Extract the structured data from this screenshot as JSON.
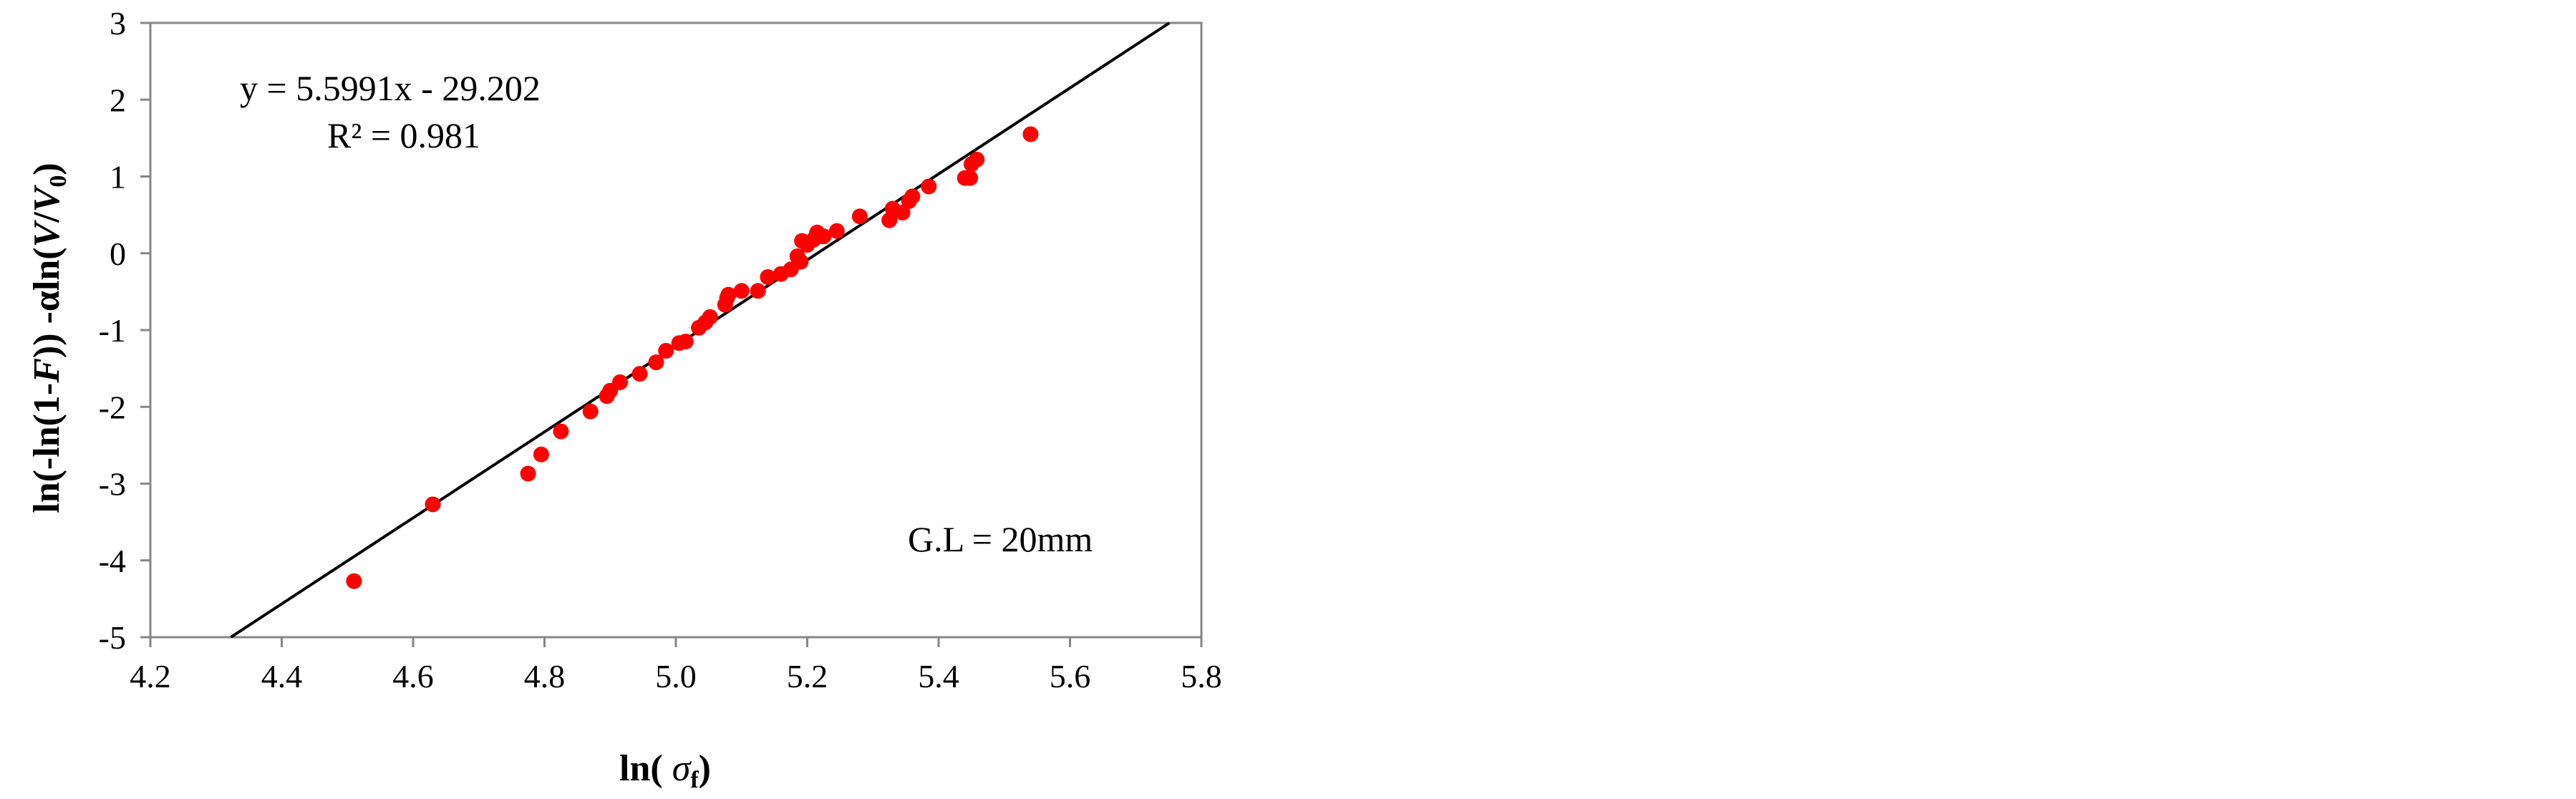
{
  "chart_data": {
    "type": "scatter",
    "title": "",
    "xlabel": "ln( σf)",
    "ylabel": "ln(-ln(1-F)) -αln(V/V0)",
    "xlim": [
      4.2,
      5.8
    ],
    "ylim": [
      -5,
      3
    ],
    "x_ticks": [
      "4.2",
      "4.4",
      "4.6",
      "4.8",
      "5.0",
      "5.2",
      "5.4",
      "5.6",
      "5.8"
    ],
    "y_ticks": [
      "3",
      "2",
      "1",
      "0",
      "-1",
      "-2",
      "-3",
      "-4",
      "-5"
    ],
    "grid": false,
    "legend": "none",
    "marker_color": "#ff0000",
    "line_color": "#000000",
    "annotations": {
      "equation": "y = 5.5991x - 29.202",
      "r_squared": "R² = 0.981",
      "gauge_length": "G.L = 20mm"
    },
    "trendline": {
      "slope": 5.5991,
      "intercept": -29.202
    },
    "series": [
      {
        "points": [
          [
            4.51,
            -4.27
          ],
          [
            4.63,
            -3.27
          ],
          [
            4.775,
            -2.87
          ],
          [
            4.795,
            -2.62
          ],
          [
            4.825,
            -2.32
          ],
          [
            4.87,
            -2.06
          ],
          [
            4.895,
            -1.86
          ],
          [
            4.9,
            -1.79
          ],
          [
            4.915,
            -1.68
          ],
          [
            4.945,
            -1.57
          ],
          [
            4.97,
            -1.42
          ],
          [
            4.985,
            -1.27
          ],
          [
            5.005,
            -1.17
          ],
          [
            5.015,
            -1.15
          ],
          [
            5.035,
            -0.97
          ],
          [
            5.045,
            -0.9
          ],
          [
            5.052,
            -0.83
          ],
          [
            5.075,
            -0.67
          ],
          [
            5.078,
            -0.58
          ],
          [
            5.08,
            -0.54
          ],
          [
            5.1,
            -0.49
          ],
          [
            5.125,
            -0.49
          ],
          [
            5.14,
            -0.31
          ],
          [
            5.16,
            -0.27
          ],
          [
            5.175,
            -0.21
          ],
          [
            5.185,
            -0.04
          ],
          [
            5.19,
            -0.11
          ],
          [
            5.192,
            0.16
          ],
          [
            5.2,
            0.11
          ],
          [
            5.21,
            0.18
          ],
          [
            5.215,
            0.27
          ],
          [
            5.225,
            0.22
          ],
          [
            5.245,
            0.29
          ],
          [
            5.28,
            0.48
          ],
          [
            5.325,
            0.43
          ],
          [
            5.33,
            0.58
          ],
          [
            5.345,
            0.53
          ],
          [
            5.355,
            0.68
          ],
          [
            5.36,
            0.74
          ],
          [
            5.385,
            0.87
          ],
          [
            5.44,
            0.98
          ],
          [
            5.448,
            0.98
          ],
          [
            5.45,
            1.16
          ],
          [
            5.458,
            1.22
          ],
          [
            5.54,
            1.55
          ]
        ]
      }
    ]
  }
}
